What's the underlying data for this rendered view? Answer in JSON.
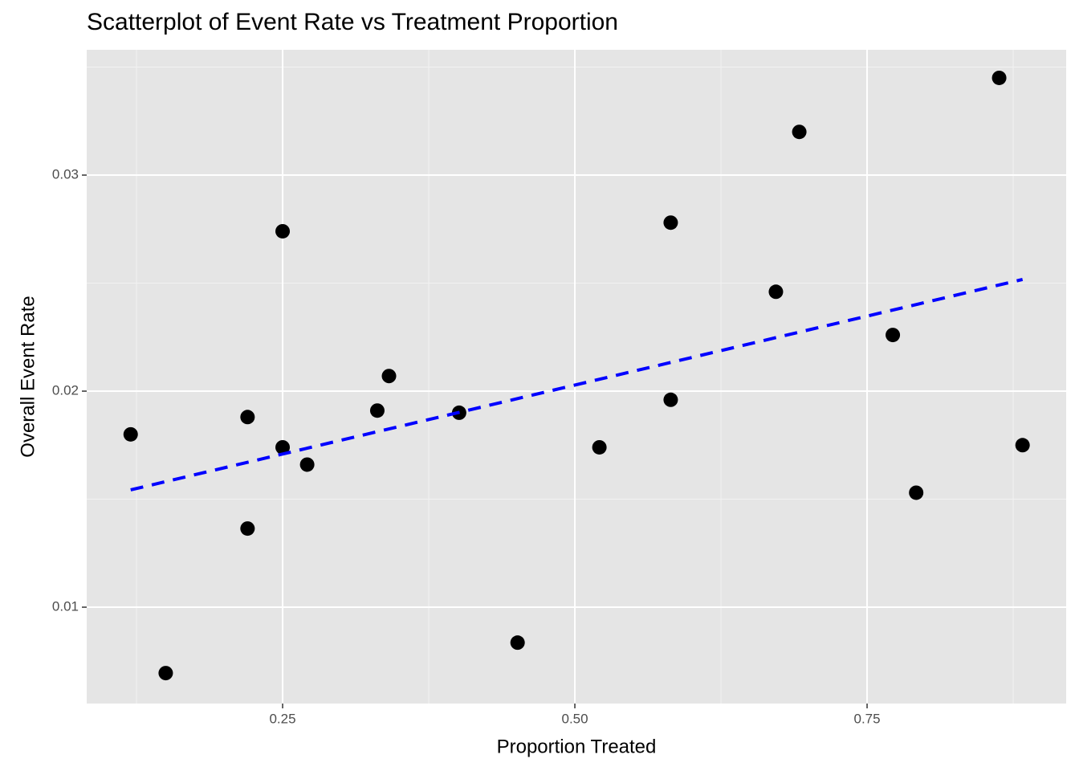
{
  "chart_data": {
    "type": "scatter",
    "title": "Scatterplot of Event Rate vs Treatment Proportion",
    "x_label": "Proportion Treated",
    "y_label": "Overall Event Rate",
    "xlim": [
      0.0824,
      0.9203
    ],
    "ylim": [
      0.00554,
      0.0358
    ],
    "xticks": [
      {
        "value": 0.25,
        "label": "0.25"
      },
      {
        "value": 0.5,
        "label": "0.50"
      },
      {
        "value": 0.75,
        "label": "0.75"
      }
    ],
    "yticks": [
      0.01,
      0.02,
      0.03
    ],
    "grid": true,
    "color": "#000000",
    "x": [
      0.12,
      0.15,
      0.22,
      0.22,
      0.25,
      0.25,
      0.271,
      0.331,
      0.341,
      0.401,
      0.451,
      0.521,
      0.582,
      0.582,
      0.672,
      0.692,
      0.772,
      0.792,
      0.863,
      0.883
    ],
    "values": [
      0.018,
      0.00695,
      0.0188,
      0.01364,
      0.0274,
      0.0174,
      0.0166,
      0.0191,
      0.0207,
      0.019,
      0.00836,
      0.0174,
      0.0278,
      0.0196,
      0.0246,
      0.032,
      0.0226,
      0.0153,
      0.0345,
      0.0175
    ],
    "trend": {
      "x": [
        0.12,
        0.883
      ],
      "values": [
        0.01543,
        0.02517
      ],
      "color": "#0000ff",
      "dashed": true
    }
  }
}
